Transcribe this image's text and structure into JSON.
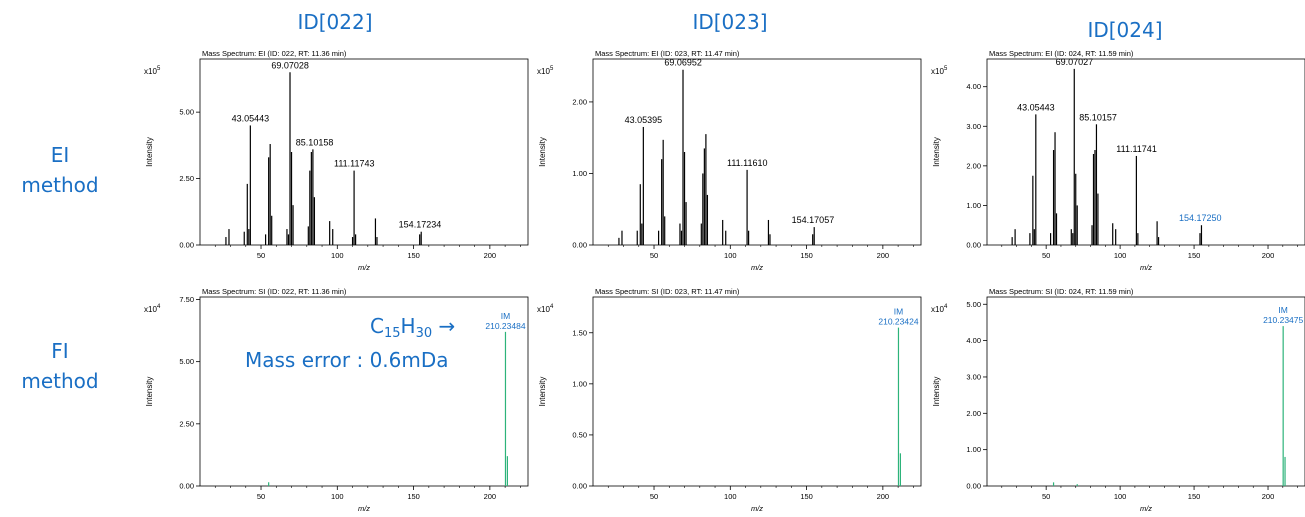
{
  "column_headers": [
    "ID[022]",
    "ID[023]",
    "ID[024]"
  ],
  "row_labels": [
    {
      "line1": "EI",
      "line2": "method"
    },
    {
      "line1": "FI",
      "line2": "method"
    }
  ],
  "annotation": {
    "formula_c": "C",
    "formula_c_sub": "15",
    "formula_h": "H",
    "formula_h_sub": "30",
    "arrow": "→",
    "mass_error": "Mass error : 0.6mDa"
  },
  "colors": {
    "ei_line": "#000000",
    "fi_line": "#2db37a",
    "label_blue": "#1a6fc4",
    "axis": "#000000"
  },
  "chart_data": [
    {
      "type": "bar",
      "row": 0,
      "col": 0,
      "kind": "ei",
      "title": "Mass Spectrum: EI (ID: 022, RT: 11.36 min)",
      "xlabel": "m/z",
      "ylabel": "Intensity",
      "exponent_label": "x10",
      "exponent": "5",
      "xlim": [
        10,
        225
      ],
      "ylim": [
        0,
        7.0
      ],
      "xticks": [
        50,
        100,
        150,
        200
      ],
      "yticks": [
        0,
        2.5,
        5.0
      ],
      "ytick_labels": [
        "0.00",
        "2.50",
        "5.00"
      ],
      "peaks": [
        [
          27,
          0.3
        ],
        [
          29,
          0.6
        ],
        [
          39,
          0.5
        ],
        [
          41,
          2.3
        ],
        [
          42,
          0.6
        ],
        [
          43,
          4.5
        ],
        [
          53,
          0.4
        ],
        [
          55,
          3.3
        ],
        [
          56,
          3.8
        ],
        [
          57,
          1.1
        ],
        [
          67,
          0.6
        ],
        [
          68,
          0.4
        ],
        [
          69,
          6.5
        ],
        [
          70,
          3.5
        ],
        [
          71,
          1.5
        ],
        [
          81,
          0.7
        ],
        [
          82,
          2.8
        ],
        [
          83,
          3.5
        ],
        [
          84,
          3.6
        ],
        [
          85,
          1.8
        ],
        [
          95,
          0.9
        ],
        [
          97,
          0.6
        ],
        [
          110,
          0.3
        ],
        [
          111,
          2.8
        ],
        [
          112,
          0.4
        ],
        [
          125,
          1.0
        ],
        [
          126,
          0.3
        ],
        [
          154,
          0.4
        ],
        [
          155,
          0.5
        ]
      ],
      "labels": [
        {
          "x": 69.07028,
          "y": 6.5,
          "text": "69.07028"
        },
        {
          "x": 43.05443,
          "y": 4.5,
          "text": "43.05443"
        },
        {
          "x": 85.10158,
          "y": 3.6,
          "text": "85.10158"
        },
        {
          "x": 111.11743,
          "y": 2.8,
          "text": "111.11743"
        },
        {
          "x": 154.17234,
          "y": 0.5,
          "text": "154.17234"
        }
      ]
    },
    {
      "type": "bar",
      "row": 0,
      "col": 1,
      "kind": "ei",
      "title": "Mass Spectrum: EI (ID: 023, RT: 11.47 min)",
      "xlabel": "m/z",
      "ylabel": "Intensity",
      "exponent_label": "x10",
      "exponent": "5",
      "xlim": [
        10,
        225
      ],
      "ylim": [
        0,
        2.6
      ],
      "xticks": [
        50,
        100,
        150,
        200
      ],
      "yticks": [
        0,
        1.0,
        2.0
      ],
      "ytick_labels": [
        "0.00",
        "1.00",
        "2.00"
      ],
      "peaks": [
        [
          27,
          0.1
        ],
        [
          29,
          0.2
        ],
        [
          39,
          0.2
        ],
        [
          41,
          0.85
        ],
        [
          42,
          0.3
        ],
        [
          43,
          1.65
        ],
        [
          53,
          0.2
        ],
        [
          55,
          1.2
        ],
        [
          56,
          1.47
        ],
        [
          57,
          0.4
        ],
        [
          67,
          0.3
        ],
        [
          68,
          0.2
        ],
        [
          69,
          2.45
        ],
        [
          70,
          1.3
        ],
        [
          71,
          0.6
        ],
        [
          81,
          0.3
        ],
        [
          82,
          1.0
        ],
        [
          83,
          1.35
        ],
        [
          84,
          1.55
        ],
        [
          85,
          0.7
        ],
        [
          95,
          0.35
        ],
        [
          97,
          0.2
        ],
        [
          111,
          1.05
        ],
        [
          112,
          0.2
        ],
        [
          125,
          0.35
        ],
        [
          126,
          0.15
        ],
        [
          154,
          0.15
        ],
        [
          155,
          0.25
        ]
      ],
      "labels": [
        {
          "x": 69.06952,
          "y": 2.45,
          "text": "69.06952"
        },
        {
          "x": 43.05395,
          "y": 1.65,
          "text": "43.05395"
        },
        {
          "x": 111.1161,
          "y": 1.05,
          "text": "111.11610"
        },
        {
          "x": 154.17057,
          "y": 0.25,
          "text": "154.17057"
        }
      ]
    },
    {
      "type": "bar",
      "row": 0,
      "col": 2,
      "kind": "ei",
      "title": "Mass Spectrum: EI (ID: 024, RT: 11.59 min)",
      "xlabel": "m/z",
      "ylabel": "Intensity",
      "exponent_label": "x10",
      "exponent": "5",
      "xlim": [
        10,
        225
      ],
      "ylim": [
        0,
        4.7
      ],
      "xticks": [
        50,
        100,
        150,
        200
      ],
      "yticks": [
        0,
        1.0,
        2.0,
        3.0,
        4.0
      ],
      "ytick_labels": [
        "0.00",
        "1.00",
        "2.00",
        "3.00",
        "4.00"
      ],
      "peaks": [
        [
          27,
          0.2
        ],
        [
          29,
          0.4
        ],
        [
          39,
          0.3
        ],
        [
          41,
          1.75
        ],
        [
          42,
          0.4
        ],
        [
          43,
          3.3
        ],
        [
          53,
          0.3
        ],
        [
          55,
          2.4
        ],
        [
          56,
          2.85
        ],
        [
          57,
          0.8
        ],
        [
          67,
          0.4
        ],
        [
          68,
          0.3
        ],
        [
          69,
          4.45
        ],
        [
          70,
          1.8
        ],
        [
          71,
          1.0
        ],
        [
          81,
          0.5
        ],
        [
          82,
          2.3
        ],
        [
          83,
          2.4
        ],
        [
          84,
          3.05
        ],
        [
          85,
          1.3
        ],
        [
          95,
          0.55
        ],
        [
          97,
          0.4
        ],
        [
          111,
          2.25
        ],
        [
          112,
          0.3
        ],
        [
          125,
          0.6
        ],
        [
          126,
          0.2
        ],
        [
          154,
          0.3
        ],
        [
          155,
          0.5
        ]
      ],
      "labels": [
        {
          "x": 69.07027,
          "y": 4.45,
          "text": "69.07027"
        },
        {
          "x": 43.05443,
          "y": 3.3,
          "text": "43.05443"
        },
        {
          "x": 85.10157,
          "y": 3.05,
          "text": "85.10157"
        },
        {
          "x": 111.11741,
          "y": 2.25,
          "text": "111.11741"
        },
        {
          "x": 154.1725,
          "y": 0.5,
          "text": "154.17250",
          "color": "blue"
        }
      ]
    },
    {
      "type": "bar",
      "row": 1,
      "col": 0,
      "kind": "fi",
      "title": "Mass Spectrum: SI (ID: 022, RT: 11.36 min)",
      "xlabel": "m/z",
      "ylabel": "Intensity",
      "exponent_label": "x10",
      "exponent": "4",
      "xlim": [
        10,
        225
      ],
      "ylim": [
        0,
        7.6
      ],
      "xticks": [
        50,
        100,
        150,
        200
      ],
      "yticks": [
        0,
        2.5,
        5.0,
        7.5
      ],
      "ytick_labels": [
        "0.00",
        "2.50",
        "5.00",
        "7.50"
      ],
      "peaks": [
        [
          55,
          0.15
        ],
        [
          210.23484,
          6.2
        ],
        [
          211.5,
          1.2
        ]
      ],
      "labels": [
        {
          "x": 210.23484,
          "y": 6.2,
          "text": "IM",
          "text2": "210.23484",
          "color": "blue"
        }
      ]
    },
    {
      "type": "bar",
      "row": 1,
      "col": 1,
      "kind": "fi",
      "title": "Mass Spectrum: SI (ID: 023, RT: 11.47 min)",
      "xlabel": "m/z",
      "ylabel": "Intensity",
      "exponent_label": "x10",
      "exponent": "4",
      "xlim": [
        10,
        225
      ],
      "ylim": [
        0,
        1.85
      ],
      "xticks": [
        50,
        100,
        150,
        200
      ],
      "yticks": [
        0,
        0.5,
        1.0,
        1.5
      ],
      "ytick_labels": [
        "0.00",
        "0.50",
        "1.00",
        "1.50"
      ],
      "peaks": [
        [
          210.23424,
          1.55
        ],
        [
          211.5,
          0.32
        ]
      ],
      "labels": [
        {
          "x": 210.23424,
          "y": 1.55,
          "text": "IM",
          "text2": "210.23424",
          "color": "blue"
        }
      ]
    },
    {
      "type": "bar",
      "row": 1,
      "col": 2,
      "kind": "fi",
      "title": "Mass Spectrum: SI (ID: 024, RT: 11.59 min)",
      "xlabel": "m/z",
      "ylabel": "Intensity",
      "exponent_label": "x10",
      "exponent": "4",
      "xlim": [
        10,
        225
      ],
      "ylim": [
        0,
        5.2
      ],
      "xticks": [
        50,
        100,
        150,
        200
      ],
      "yticks": [
        0,
        1.0,
        2.0,
        3.0,
        4.0,
        5.0
      ],
      "ytick_labels": [
        "0.00",
        "1.00",
        "2.00",
        "3.00",
        "4.00",
        "5.00"
      ],
      "peaks": [
        [
          55,
          0.1
        ],
        [
          71,
          0.05
        ],
        [
          210.23475,
          4.4
        ],
        [
          211.5,
          0.8
        ]
      ],
      "labels": [
        {
          "x": 210.23475,
          "y": 4.4,
          "text": "IM",
          "text2": "210.23475",
          "color": "blue"
        }
      ]
    }
  ]
}
